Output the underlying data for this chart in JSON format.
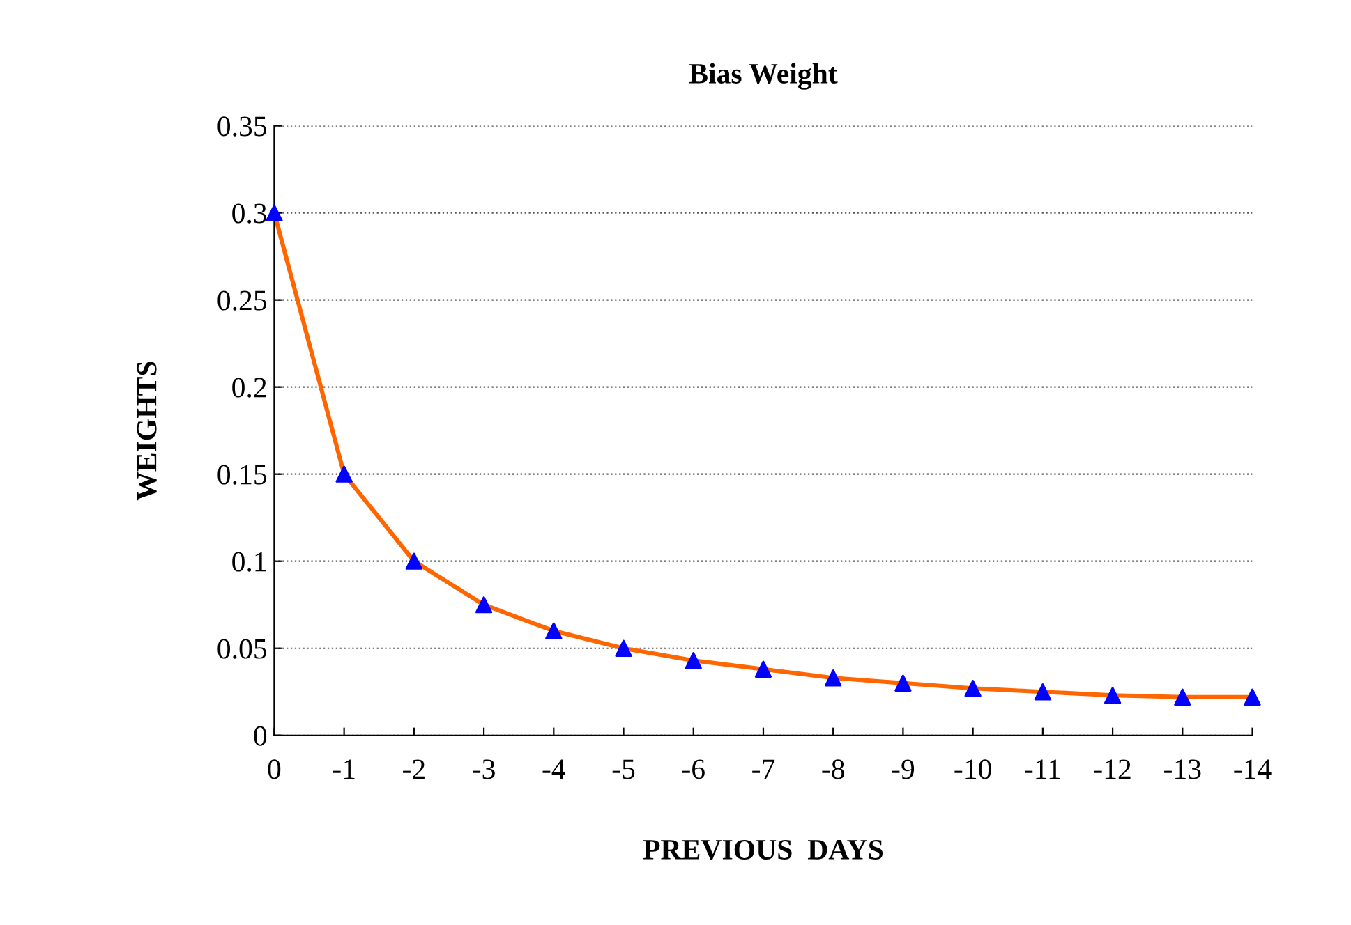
{
  "chart_data": {
    "type": "line",
    "title": "Bias Weight",
    "xlabel": "PREVIOUS  DAYS",
    "ylabel": "WEIGHTS",
    "categories": [
      "0",
      "-1",
      "-2",
      "-3",
      "-4",
      "-5",
      "-6",
      "-7",
      "-8",
      "-9",
      "-10",
      "-11",
      "-12",
      "-13",
      "-14"
    ],
    "series": [
      {
        "color": "#ff6600",
        "colors": [
          "#0000ff",
          "#0000ff",
          "#0000ff",
          "#0000ff",
          "#0000ff",
          "#0000ff",
          "#0000ff",
          "#0000ff",
          "#0000ff",
          "#0000ff",
          "#0000ff",
          "#0000ff",
          "#0000ff",
          "#0000ff",
          "#0000ff"
        ],
        "values": [
          0.3,
          0.15,
          0.1,
          0.075,
          0.06,
          0.05,
          0.043,
          0.038,
          0.033,
          0.03,
          0.027,
          0.025,
          0.023,
          0.022,
          0.022
        ]
      }
    ],
    "ylim": [
      0,
      0.35
    ],
    "yticks": [
      0,
      0.05,
      0.1,
      0.15,
      0.2,
      0.25,
      0.3,
      0.35
    ],
    "grid": "y",
    "marker": "triangle",
    "line_style": "solid",
    "legend": false
  }
}
